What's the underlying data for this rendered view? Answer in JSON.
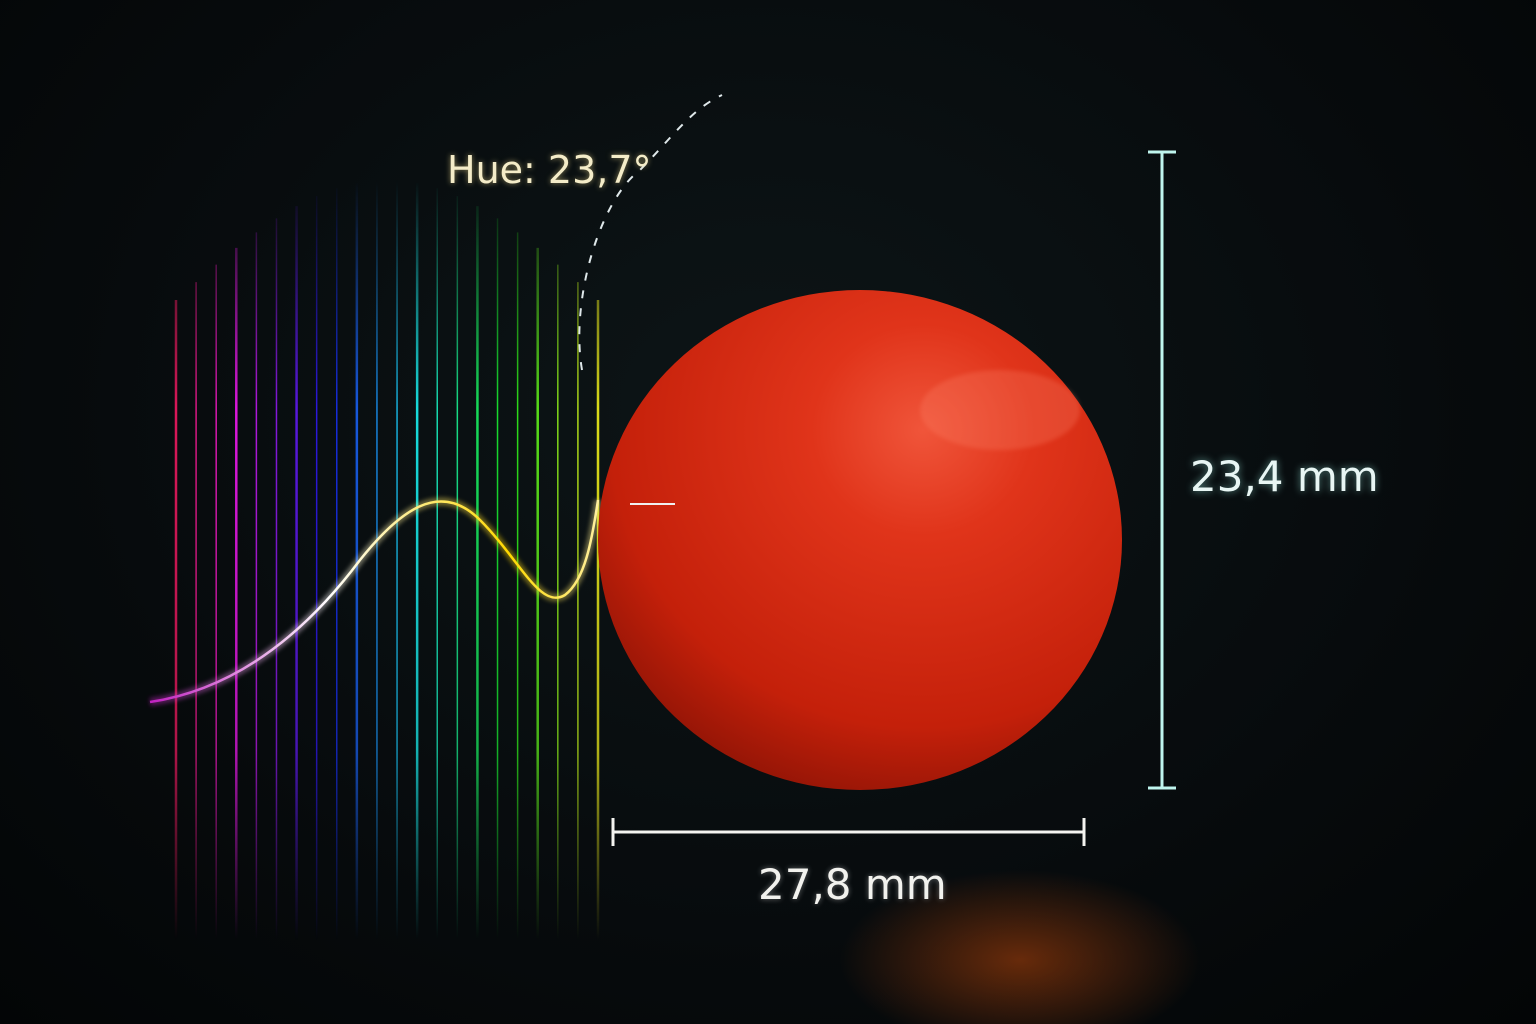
{
  "annotations": {
    "hue_label": "Hue: 23,7°",
    "height_label": "23,4 mm",
    "width_label": "27,8 mm"
  },
  "subject": "tomato",
  "colors": {
    "tomato": "#d42a10",
    "height_bar": "#bff5ee",
    "width_bar": "#f4f4f0",
    "hue_text": "#f4ecc8"
  },
  "spectrum": {
    "hue_start": 340,
    "hue_end": 60
  }
}
